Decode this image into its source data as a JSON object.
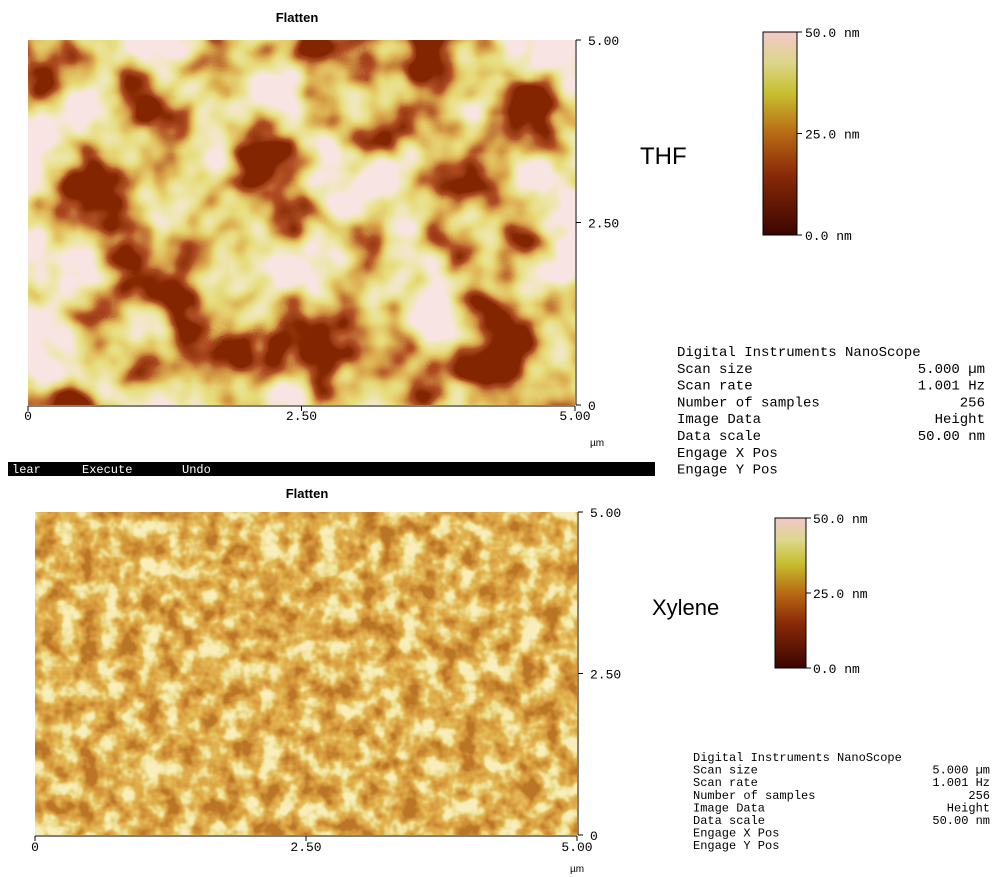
{
  "toolbar": [
    "lear",
    "Execute",
    "Undo"
  ],
  "panels": [
    {
      "title": "Flatten",
      "sample": "THF",
      "y_ticks": [
        "5.00",
        "2.50",
        "0"
      ],
      "x_ticks": [
        "0",
        "2.50",
        "5.00"
      ],
      "x_unit": "µm",
      "colorbar": [
        "50.0 nm",
        "25.0 nm",
        "0.0 nm"
      ],
      "info": {
        "header": "Digital Instruments NanoScope",
        "rows": [
          [
            "Scan size",
            "5.000 µm"
          ],
          [
            "Scan rate",
            "1.001 Hz"
          ],
          [
            "Number of samples",
            "256"
          ],
          [
            "Image Data",
            "Height"
          ],
          [
            "Data scale",
            "50.00 nm"
          ],
          [
            "Engage X Pos"
          ],
          [
            "Engage Y Pos"
          ]
        ]
      }
    },
    {
      "title": "Flatten",
      "sample": "Xylene",
      "y_ticks": [
        "5.00",
        "2.50",
        "0"
      ],
      "x_ticks": [
        "0",
        "2.50",
        "5.00"
      ],
      "x_unit": "µm",
      "colorbar": [
        "50.0 nm",
        "25.0 nm",
        "0.0 nm"
      ],
      "info": {
        "header": "Digital Instruments NanoScope",
        "rows": [
          [
            "Scan size",
            "5.000 µm"
          ],
          [
            "Scan rate",
            "1.001 Hz"
          ],
          [
            "Number of samples",
            "256"
          ],
          [
            "Image Data",
            "Height"
          ],
          [
            "Data scale",
            "50.00 nm"
          ],
          [
            "Engage X Pos"
          ],
          [
            "Engage Y Pos"
          ]
        ]
      }
    }
  ]
}
